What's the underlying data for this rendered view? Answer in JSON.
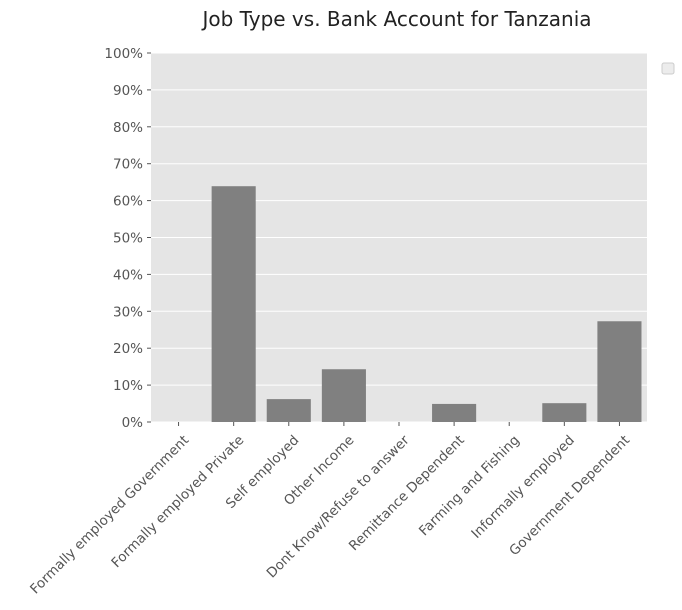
{
  "chart_data": {
    "type": "bar",
    "title": "Job Type vs. Bank Account for Tanzania",
    "xlabel": "",
    "ylabel": "",
    "categories": [
      "Formally employed Government",
      "Formally employed Private",
      "Self employed",
      "Other Income",
      "Dont Know/Refuse to answer",
      "Remittance Dependent",
      "Farming and Fishing",
      "Informally employed",
      "Government Dependent"
    ],
    "values": [
      0,
      63.9,
      6.2,
      14.3,
      0,
      4.9,
      0,
      5.1,
      27.3
    ],
    "ylim": [
      0,
      100
    ],
    "ytick_values": [
      0,
      10,
      20,
      30,
      40,
      50,
      60,
      70,
      80,
      90,
      100
    ],
    "ytick_labels": [
      "0%",
      "10%",
      "20%",
      "30%",
      "40%",
      "50%",
      "60%",
      "70%",
      "80%",
      "90%",
      "100%"
    ],
    "grid": true,
    "legend": "empty, outside top-right",
    "colors": {
      "plot_background": "#e5e5e5",
      "bar": "#808080",
      "grid": "#ffffff",
      "tick_text": "#555555"
    }
  }
}
